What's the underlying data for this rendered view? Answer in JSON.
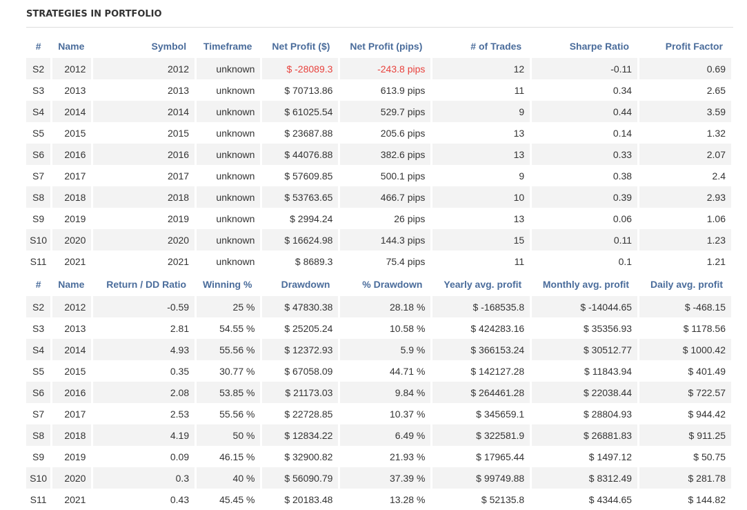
{
  "title": "STRATEGIES IN PORTFOLIO",
  "table1": {
    "headers": [
      "#",
      "Name",
      "Symbol",
      "Timeframe",
      "Net Profit ($)",
      "Net Profit (pips)",
      "# of Trades",
      "Sharpe Ratio",
      "Profit Factor"
    ],
    "rows": [
      [
        "S2",
        "2012",
        "2012",
        "unknown",
        "$ -28089.3",
        "-243.8 pips",
        "12",
        "-0.11",
        "0.69"
      ],
      [
        "S3",
        "2013",
        "2013",
        "unknown",
        "$ 70713.86",
        "613.9 pips",
        "11",
        "0.34",
        "2.65"
      ],
      [
        "S4",
        "2014",
        "2014",
        "unknown",
        "$ 61025.54",
        "529.7 pips",
        "9",
        "0.44",
        "3.59"
      ],
      [
        "S5",
        "2015",
        "2015",
        "unknown",
        "$ 23687.88",
        "205.6 pips",
        "13",
        "0.14",
        "1.32"
      ],
      [
        "S6",
        "2016",
        "2016",
        "unknown",
        "$ 44076.88",
        "382.6 pips",
        "13",
        "0.33",
        "2.07"
      ],
      [
        "S7",
        "2017",
        "2017",
        "unknown",
        "$ 57609.85",
        "500.1 pips",
        "9",
        "0.38",
        "2.4"
      ],
      [
        "S8",
        "2018",
        "2018",
        "unknown",
        "$ 53763.65",
        "466.7 pips",
        "10",
        "0.39",
        "2.93"
      ],
      [
        "S9",
        "2019",
        "2019",
        "unknown",
        "$ 2994.24",
        "26 pips",
        "13",
        "0.06",
        "1.06"
      ],
      [
        "S10",
        "2020",
        "2020",
        "unknown",
        "$ 16624.98",
        "144.3 pips",
        "15",
        "0.11",
        "1.23"
      ],
      [
        "S11",
        "2021",
        "2021",
        "unknown",
        "$ 8689.3",
        "75.4 pips",
        "11",
        "0.1",
        "1.21"
      ]
    ]
  },
  "table2": {
    "headers": [
      "#",
      "Name",
      "Return / DD Ratio",
      "Winning %",
      "Drawdown",
      "% Drawdown",
      "Yearly avg. profit",
      "Monthly avg. profit",
      "Daily avg. profit"
    ],
    "rows": [
      [
        "S2",
        "2012",
        "-0.59",
        "25 %",
        "$ 47830.38",
        "28.18 %",
        "$ -168535.8",
        "$ -14044.65",
        "$ -468.15"
      ],
      [
        "S3",
        "2013",
        "2.81",
        "54.55 %",
        "$ 25205.24",
        "10.58 %",
        "$ 424283.16",
        "$ 35356.93",
        "$ 1178.56"
      ],
      [
        "S4",
        "2014",
        "4.93",
        "55.56 %",
        "$ 12372.93",
        "5.9 %",
        "$ 366153.24",
        "$ 30512.77",
        "$ 1000.42"
      ],
      [
        "S5",
        "2015",
        "0.35",
        "30.77 %",
        "$ 67058.09",
        "44.71 %",
        "$ 142127.28",
        "$ 11843.94",
        "$ 401.49"
      ],
      [
        "S6",
        "2016",
        "2.08",
        "53.85 %",
        "$ 21173.03",
        "9.84 %",
        "$ 264461.28",
        "$ 22038.44",
        "$ 722.57"
      ],
      [
        "S7",
        "2017",
        "2.53",
        "55.56 %",
        "$ 22728.85",
        "10.37 %",
        "$ 345659.1",
        "$ 28804.93",
        "$ 944.42"
      ],
      [
        "S8",
        "2018",
        "4.19",
        "50 %",
        "$ 12834.22",
        "6.49 %",
        "$ 322581.9",
        "$ 26881.83",
        "$ 911.25"
      ],
      [
        "S9",
        "2019",
        "0.09",
        "46.15 %",
        "$ 32900.82",
        "21.93 %",
        "$ 17965.44",
        "$ 1497.12",
        "$ 50.75"
      ],
      [
        "S10",
        "2020",
        "0.3",
        "40 %",
        "$ 56090.79",
        "37.39 %",
        "$ 99749.88",
        "$ 8312.49",
        "$ 281.78"
      ],
      [
        "S11",
        "2021",
        "0.43",
        "45.45 %",
        "$ 20183.48",
        "13.28 %",
        "$ 52135.8",
        "$ 4344.65",
        "$ 144.82"
      ]
    ]
  },
  "colors": {
    "header": "#4a6c9b",
    "negative": "#e8413c",
    "stripe": "#f3f3f3"
  }
}
